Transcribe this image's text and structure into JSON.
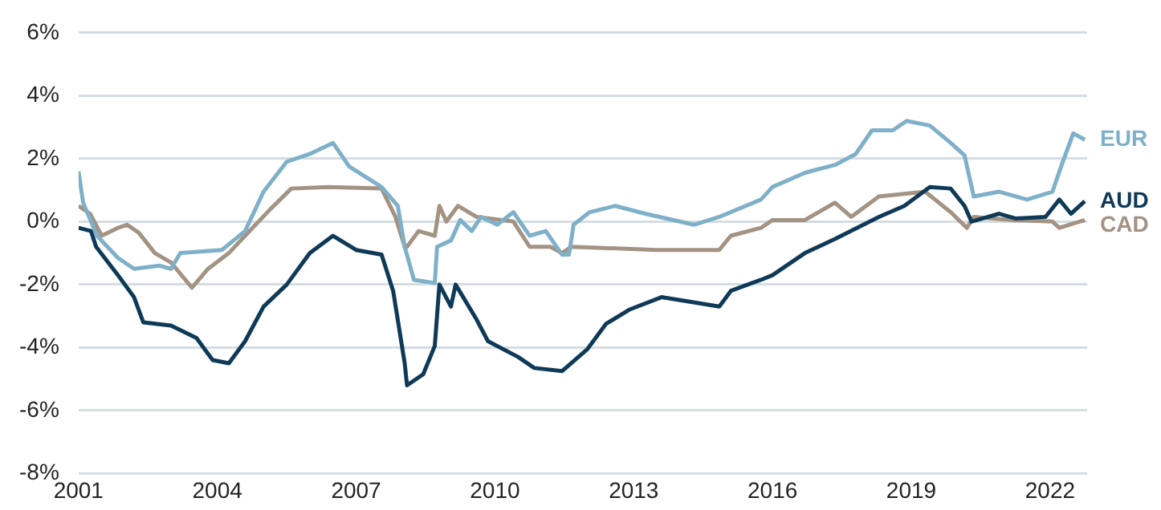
{
  "chart_data": {
    "type": "line",
    "xlim": [
      2001,
      2022.8
    ],
    "xticks": [
      2001,
      2004,
      2007,
      2010,
      2013,
      2016,
      2019,
      2022
    ],
    "ylim": [
      -8,
      6
    ],
    "yticks": [
      {
        "value": -8,
        "label": "-8%"
      },
      {
        "value": -6,
        "label": "-6%"
      },
      {
        "value": -4,
        "label": "-4%"
      },
      {
        "value": -2,
        "label": "-2%"
      },
      {
        "value": 0,
        "label": "0%"
      },
      {
        "value": 2,
        "label": "2%"
      },
      {
        "value": 4,
        "label": "4%"
      },
      {
        "value": 6,
        "label": "6%"
      }
    ],
    "grid": "y",
    "legend": false,
    "marker": "none",
    "line_style": "solid",
    "series": [
      {
        "name": "EUR",
        "color": "#7fb0c9",
        "x": [
          2001,
          2001.1,
          2001.4,
          2001.85,
          2002.2,
          2002.75,
          2003,
          2003.2,
          2004.1,
          2004.6,
          2005,
          2005.5,
          2006,
          2006.5,
          2006.85,
          2007.55,
          2007.9,
          2008.05,
          2008.25,
          2008.7,
          2008.75,
          2009.05,
          2009.25,
          2009.5,
          2009.7,
          2010.05,
          2010.4,
          2010.75,
          2011.1,
          2011.45,
          2011.6,
          2011.7,
          2012.05,
          2012.6,
          2013.25,
          2014.3,
          2014.85,
          2015.75,
          2016,
          2016.7,
          2017.35,
          2017.8,
          2018.15,
          2018.6,
          2018.9,
          2019.4,
          2019.85,
          2020.15,
          2020.35,
          2020.9,
          2021.5,
          2022.05,
          2022.25,
          2022.5,
          2022.75
        ],
        "values": [
          1.6,
          0.6,
          -0.45,
          -1.15,
          -1.5,
          -1.4,
          -1.5,
          -1.0,
          -0.9,
          -0.3,
          0.95,
          1.9,
          2.15,
          2.5,
          1.75,
          1.1,
          0.5,
          -0.8,
          -1.85,
          -1.95,
          -0.8,
          -0.6,
          0.05,
          -0.3,
          0.15,
          -0.1,
          0.3,
          -0.45,
          -0.3,
          -1.05,
          -1.05,
          -0.1,
          0.3,
          0.5,
          0.25,
          -0.1,
          0.15,
          0.7,
          1.1,
          1.55,
          1.8,
          2.15,
          2.9,
          2.9,
          3.2,
          3.05,
          2.5,
          2.1,
          0.8,
          0.95,
          0.7,
          0.95,
          1.8,
          2.8,
          2.6
        ]
      },
      {
        "name": "AUD",
        "color": "#0f3a57",
        "x": [
          2001,
          2001.27,
          2001.38,
          2001.85,
          2002.2,
          2002.4,
          2003,
          2003.55,
          2003.9,
          2004.25,
          2004.6,
          2005,
          2005.5,
          2006,
          2006.5,
          2007,
          2007.55,
          2007.8,
          2008.05,
          2008.1,
          2008.45,
          2008.7,
          2008.8,
          2009.05,
          2009.15,
          2009.6,
          2009.85,
          2010.5,
          2010.85,
          2011.45,
          2012,
          2012.4,
          2012.9,
          2013.6,
          2014.85,
          2015.1,
          2015.75,
          2016,
          2016.7,
          2017.35,
          2018.3,
          2018.85,
          2019.4,
          2019.85,
          2020.15,
          2020.3,
          2020.9,
          2021.25,
          2021.9,
          2022.2,
          2022.45,
          2022.75
        ],
        "values": [
          -0.2,
          -0.3,
          -0.8,
          -1.7,
          -2.4,
          -3.2,
          -3.3,
          -3.7,
          -4.4,
          -4.5,
          -3.8,
          -2.7,
          -2.0,
          -1.0,
          -0.45,
          -0.9,
          -1.05,
          -2.2,
          -4.5,
          -5.2,
          -4.85,
          -3.95,
          -2.0,
          -2.7,
          -2.0,
          -3.1,
          -3.8,
          -4.3,
          -4.65,
          -4.75,
          -4.05,
          -3.25,
          -2.8,
          -2.4,
          -2.7,
          -2.2,
          -1.85,
          -1.7,
          -1.0,
          -0.55,
          0.15,
          0.5,
          1.1,
          1.05,
          0.5,
          0,
          0.25,
          0.1,
          0.15,
          0.7,
          0.25,
          0.65
        ]
      },
      {
        "name": "CAD",
        "color": "#a39383",
        "x": [
          2001,
          2001.25,
          2001.5,
          2001.85,
          2002.05,
          2002.3,
          2002.65,
          2003,
          2003.45,
          2003.8,
          2004.25,
          2004.6,
          2005.15,
          2005.6,
          2006.4,
          2007.55,
          2007.85,
          2008.05,
          2008.1,
          2008.35,
          2008.7,
          2008.8,
          2008.95,
          2009.2,
          2009.6,
          2010.4,
          2010.75,
          2011.2,
          2011.45,
          2011.65,
          2013.5,
          2014.85,
          2015.1,
          2015.75,
          2016,
          2016.7,
          2017.35,
          2017.7,
          2018.3,
          2019.3,
          2019.85,
          2020.2,
          2020.35,
          2021.15,
          2022.05,
          2022.2,
          2022.75
        ],
        "values": [
          0.5,
          0.25,
          -0.45,
          -0.2,
          -0.1,
          -0.35,
          -1.0,
          -1.3,
          -2.1,
          -1.5,
          -1.0,
          -0.45,
          0.4,
          1.05,
          1.1,
          1.05,
          0.15,
          -0.8,
          -0.8,
          -0.3,
          -0.45,
          0.5,
          0,
          0.5,
          0.15,
          0,
          -0.8,
          -0.8,
          -1.0,
          -0.8,
          -0.9,
          -0.9,
          -0.45,
          -0.2,
          0.05,
          0.05,
          0.6,
          0.15,
          0.8,
          0.95,
          0.3,
          -0.2,
          0.15,
          0.05,
          0,
          -0.2,
          0.05
        ]
      }
    ]
  }
}
